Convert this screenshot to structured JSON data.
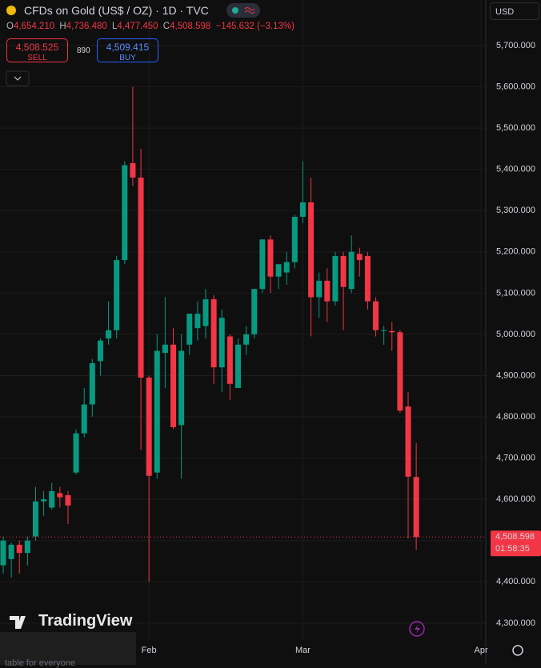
{
  "header": {
    "title": "CFDs on Gold (US$ / OZ) · 1D · TVC",
    "ohlc": [
      {
        "key": "O",
        "value": "4,654.210"
      },
      {
        "key": "H",
        "value": "4,736.480"
      },
      {
        "key": "L",
        "value": "4,477.450"
      },
      {
        "key": "C",
        "value": "4,508.598"
      }
    ],
    "change": "−145.632 (−3.13%)"
  },
  "trade": {
    "sell_price": "4,508.525",
    "sell_label": "SELL",
    "spread": "890",
    "buy_price": "4,509.415",
    "buy_label": "BUY"
  },
  "currency": "USD",
  "watermark": "TradingView",
  "footer_snippet": "table for everyone",
  "chart_data": {
    "type": "candlestick",
    "categories": [
      null,
      null,
      null,
      null,
      null,
      null,
      null,
      null,
      null,
      null,
      null,
      null,
      null,
      null,
      null,
      null,
      null,
      null,
      "Feb",
      null,
      null,
      null,
      null,
      null,
      null,
      null,
      null,
      null,
      null,
      null,
      null,
      null,
      null,
      null,
      null,
      null,
      null,
      "Mar",
      null,
      null,
      null,
      null,
      null,
      null,
      null,
      null,
      null,
      null,
      null,
      null,
      null,
      null,
      null,
      null,
      null,
      null,
      null,
      null,
      null,
      "Apr"
    ],
    "open": [
      4440,
      4455,
      4490,
      4470,
      4510,
      4595,
      4580,
      4615,
      4610,
      4665,
      4760,
      4830,
      4935,
      4990,
      5010,
      5180,
      5415,
      5380,
      4895,
      4665,
      4955,
      4975,
      4780,
      4975,
      5015,
      5020,
      5085,
      4920,
      4995,
      4870,
      4975,
      5000,
      5110,
      5230,
      5140,
      5150,
      5175,
      5285,
      5320,
      5090,
      5130,
      5080,
      5190,
      5110,
      5195,
      5190,
      5080,
      5010,
      5008,
      5005,
      4825,
      4654.21,
      null,
      null,
      null,
      null,
      null,
      null,
      null,
      null
    ],
    "high": [
      4510,
      4495,
      4500,
      4510,
      4630,
      4620,
      4640,
      4630,
      4620,
      4770,
      4870,
      4940,
      4990,
      5080,
      5190,
      5420,
      5600,
      5450,
      4900,
      5000,
      5090,
      5015,
      5000,
      5050,
      5080,
      5110,
      5095,
      5060,
      5000,
      4990,
      5020,
      5110,
      5230,
      5240,
      5170,
      5200,
      5290,
      5420,
      5380,
      5150,
      5160,
      5200,
      5200,
      5240,
      5210,
      5200,
      5090,
      5020,
      5030,
      5010,
      4860,
      4736.48,
      null,
      null,
      null,
      null,
      null,
      null,
      null,
      null
    ],
    "low": [
      4420,
      4410,
      4420,
      4440,
      4500,
      4560,
      4575,
      4580,
      4540,
      4660,
      4750,
      4800,
      4900,
      4975,
      4990,
      5170,
      5360,
      4720,
      4400,
      4650,
      4870,
      4770,
      4650,
      4950,
      4985,
      4990,
      4880,
      4860,
      4840,
      4870,
      4950,
      4990,
      5100,
      5100,
      5110,
      5120,
      5160,
      5270,
      4995,
      5040,
      5030,
      5070,
      5010,
      5100,
      5140,
      5060,
      4995,
      4975,
      4960,
      4810,
      4505,
      4477.45,
      null,
      null,
      null,
      null,
      null,
      null,
      null,
      null
    ],
    "close": [
      4500,
      4490,
      4470,
      4500,
      4595,
      4600,
      4620,
      4605,
      4585,
      4760,
      4830,
      4930,
      4985,
      5010,
      5180,
      5410,
      5380,
      4895,
      4657,
      4960,
      4975,
      4775,
      4960,
      5050,
      5050,
      5085,
      4920,
      5040,
      4880,
      4975,
      5000,
      5110,
      5230,
      5140,
      5170,
      5175,
      5285,
      5320,
      5090,
      5130,
      5080,
      5190,
      5115,
      5200,
      5180,
      5080,
      5010,
      5010,
      5005,
      4815,
      4655,
      4508.598,
      null,
      null,
      null,
      null,
      null,
      null,
      null,
      null
    ],
    "up_color": "#089981",
    "down_color": "#f23645",
    "ylim": [
      4259,
      5810.5
    ],
    "yticks": [
      {
        "value": 4300,
        "label": "4,300.000"
      },
      {
        "value": 4400,
        "label": "4,400.000"
      },
      {
        "value": 4500,
        "label": "4,500.000"
      },
      {
        "value": 4600,
        "label": "4,600.000"
      },
      {
        "value": 4700,
        "label": "4,700.000"
      },
      {
        "value": 4800,
        "label": "4,800.000"
      },
      {
        "value": 4900,
        "label": "4,900.000"
      },
      {
        "value": 5000,
        "label": "5,000.000"
      },
      {
        "value": 5100,
        "label": "5,100.000"
      },
      {
        "value": 5200,
        "label": "5,200.000"
      },
      {
        "value": 5300,
        "label": "5,300.000"
      },
      {
        "value": 5400,
        "label": "5,400.000"
      },
      {
        "value": 5500,
        "label": "5,500.000"
      },
      {
        "value": 5600,
        "label": "5,600.000"
      },
      {
        "value": 5700,
        "label": "5,700.000"
      }
    ],
    "grid": true,
    "last_price": {
      "value": 4508.598,
      "label": "4,508.598"
    },
    "countdown": "01:58:35"
  }
}
